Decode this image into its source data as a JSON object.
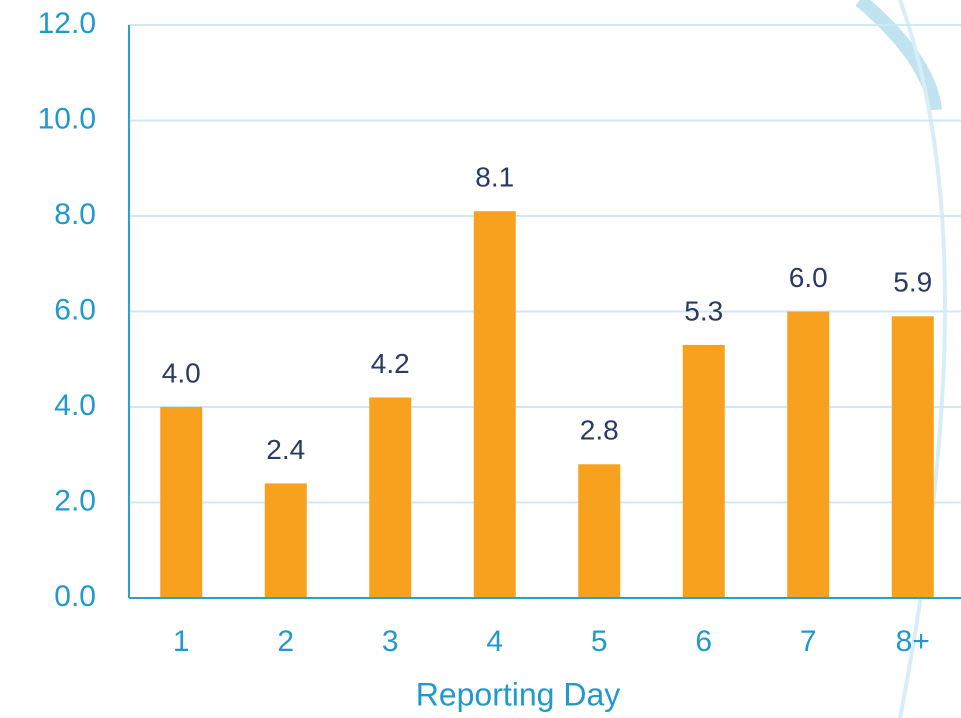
{
  "chart_data": {
    "type": "bar",
    "x_label": "Reporting Day",
    "categories": [
      "1",
      "2",
      "3",
      "4",
      "5",
      "6",
      "7",
      "8+"
    ],
    "values": [
      4.0,
      2.4,
      4.2,
      8.1,
      2.8,
      5.3,
      6.0,
      5.9
    ],
    "value_labels": [
      "4.0",
      "2.4",
      "4.2",
      "8.1",
      "2.8",
      "5.3",
      "6.0",
      "5.9"
    ],
    "color": "#f7a11e",
    "ylim": [
      0,
      12
    ],
    "yticks": [
      {
        "value": 0,
        "label": "0.0"
      },
      {
        "value": 2,
        "label": "2.0"
      },
      {
        "value": 4,
        "label": "4.0"
      },
      {
        "value": 6,
        "label": "6.0"
      },
      {
        "value": 8,
        "label": "8.0"
      },
      {
        "value": 10,
        "label": "10.0"
      },
      {
        "value": 12,
        "label": "12.0"
      }
    ],
    "grid": true
  }
}
